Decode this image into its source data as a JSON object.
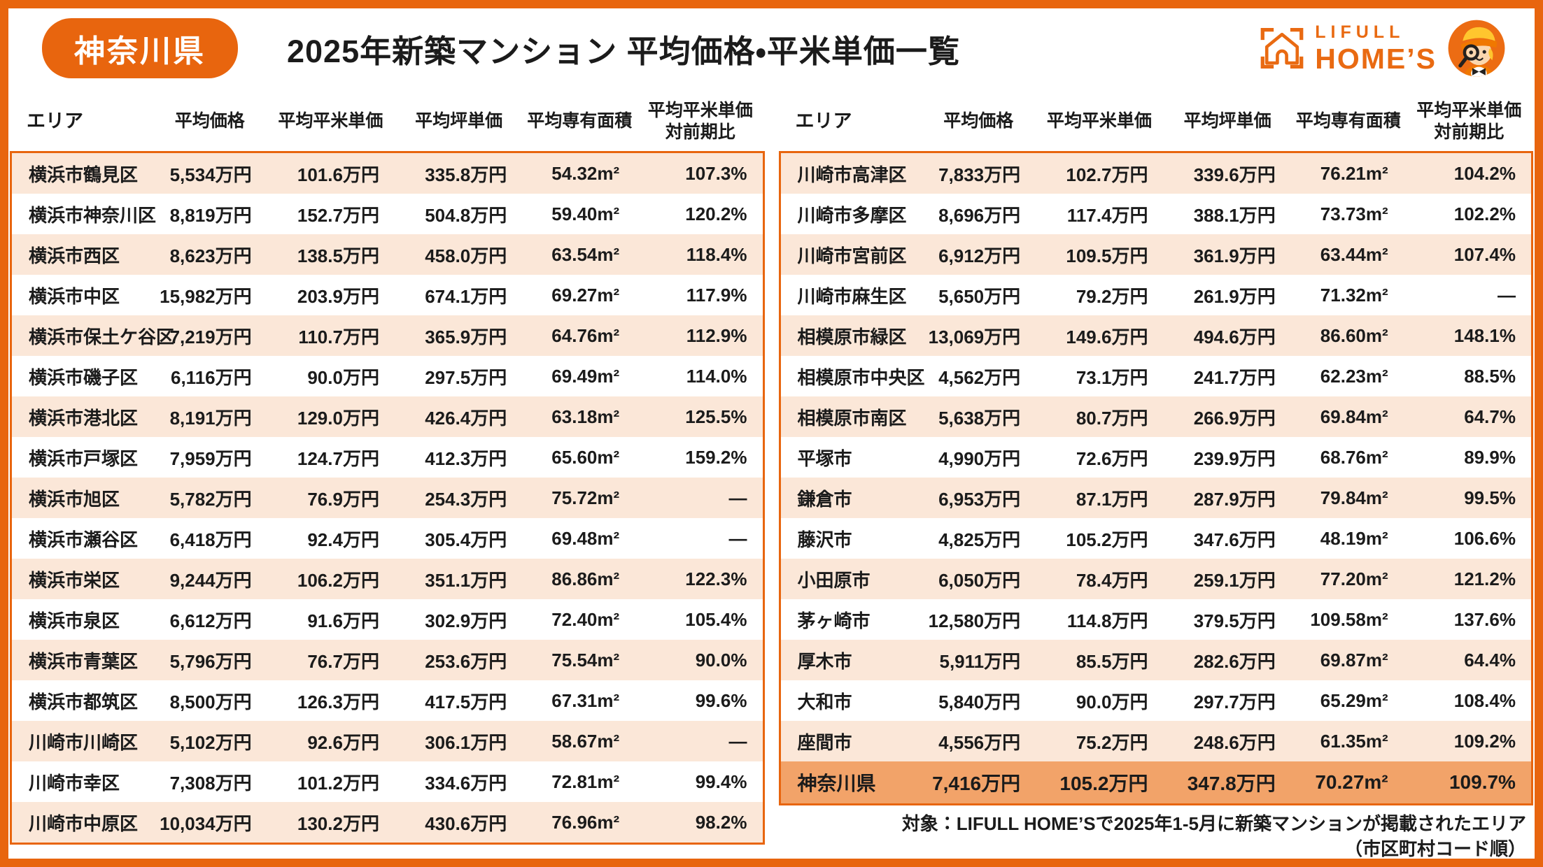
{
  "header": {
    "badge": "神奈川県",
    "title": "2025年新築マンション 平均価格・平米単価一覧"
  },
  "logo": {
    "brand_top": "LIFULL",
    "brand_bottom": "HOME’S"
  },
  "colors": {
    "accent": "#E8650E",
    "row_alternate": "#FBE7D8",
    "summary_row": "#F2A369"
  },
  "chart_data": {
    "type": "table",
    "title": "2025年新築マンション 平均価格・平米単価一覧",
    "region": "神奈川県",
    "columns": [
      "エリア",
      "平均価格",
      "平均平米単価",
      "平均坪単価",
      "平均専有面積",
      "平均平米単価\n対前期比"
    ],
    "tables": [
      {
        "rows": [
          [
            "横浜市鶴見区",
            "5,534万円",
            "101.6万円",
            "335.8万円",
            "54.32m²",
            "107.3%"
          ],
          [
            "横浜市神奈川区",
            "8,819万円",
            "152.7万円",
            "504.8万円",
            "59.40m²",
            "120.2%"
          ],
          [
            "横浜市西区",
            "8,623万円",
            "138.5万円",
            "458.0万円",
            "63.54m²",
            "118.4%"
          ],
          [
            "横浜市中区",
            "15,982万円",
            "203.9万円",
            "674.1万円",
            "69.27m²",
            "117.9%"
          ],
          [
            "横浜市保土ケ谷区",
            "7,219万円",
            "110.7万円",
            "365.9万円",
            "64.76m²",
            "112.9%"
          ],
          [
            "横浜市磯子区",
            "6,116万円",
            "90.0万円",
            "297.5万円",
            "69.49m²",
            "114.0%"
          ],
          [
            "横浜市港北区",
            "8,191万円",
            "129.0万円",
            "426.4万円",
            "63.18m²",
            "125.5%"
          ],
          [
            "横浜市戸塚区",
            "7,959万円",
            "124.7万円",
            "412.3万円",
            "65.60m²",
            "159.2%"
          ],
          [
            "横浜市旭区",
            "5,782万円",
            "76.9万円",
            "254.3万円",
            "75.72m²",
            "—"
          ],
          [
            "横浜市瀬谷区",
            "6,418万円",
            "92.4万円",
            "305.4万円",
            "69.48m²",
            "—"
          ],
          [
            "横浜市栄区",
            "9,244万円",
            "106.2万円",
            "351.1万円",
            "86.86m²",
            "122.3%"
          ],
          [
            "横浜市泉区",
            "6,612万円",
            "91.6万円",
            "302.9万円",
            "72.40m²",
            "105.4%"
          ],
          [
            "横浜市青葉区",
            "5,796万円",
            "76.7万円",
            "253.6万円",
            "75.54m²",
            "90.0%"
          ],
          [
            "横浜市都筑区",
            "8,500万円",
            "126.3万円",
            "417.5万円",
            "67.31m²",
            "99.6%"
          ],
          [
            "川崎市川崎区",
            "5,102万円",
            "92.6万円",
            "306.1万円",
            "58.67m²",
            "—"
          ],
          [
            "川崎市幸区",
            "7,308万円",
            "101.2万円",
            "334.6万円",
            "72.81m²",
            "99.4%"
          ],
          [
            "川崎市中原区",
            "10,034万円",
            "130.2万円",
            "430.6万円",
            "76.96m²",
            "98.2%"
          ]
        ]
      },
      {
        "rows": [
          [
            "川崎市高津区",
            "7,833万円",
            "102.7万円",
            "339.6万円",
            "76.21m²",
            "104.2%"
          ],
          [
            "川崎市多摩区",
            "8,696万円",
            "117.4万円",
            "388.1万円",
            "73.73m²",
            "102.2%"
          ],
          [
            "川崎市宮前区",
            "6,912万円",
            "109.5万円",
            "361.9万円",
            "63.44m²",
            "107.4%"
          ],
          [
            "川崎市麻生区",
            "5,650万円",
            "79.2万円",
            "261.9万円",
            "71.32m²",
            "—"
          ],
          [
            "相模原市緑区",
            "13,069万円",
            "149.6万円",
            "494.6万円",
            "86.60m²",
            "148.1%"
          ],
          [
            "相模原市中央区",
            "4,562万円",
            "73.1万円",
            "241.7万円",
            "62.23m²",
            "88.5%"
          ],
          [
            "相模原市南区",
            "5,638万円",
            "80.7万円",
            "266.9万円",
            "69.84m²",
            "64.7%"
          ],
          [
            "平塚市",
            "4,990万円",
            "72.6万円",
            "239.9万円",
            "68.76m²",
            "89.9%"
          ],
          [
            "鎌倉市",
            "6,953万円",
            "87.1万円",
            "287.9万円",
            "79.84m²",
            "99.5%"
          ],
          [
            "藤沢市",
            "4,825万円",
            "105.2万円",
            "347.6万円",
            "48.19m²",
            "106.6%"
          ],
          [
            "小田原市",
            "6,050万円",
            "78.4万円",
            "259.1万円",
            "77.20m²",
            "121.2%"
          ],
          [
            "茅ヶ崎市",
            "12,580万円",
            "114.8万円",
            "379.5万円",
            "109.58m²",
            "137.6%"
          ],
          [
            "厚木市",
            "5,911万円",
            "85.5万円",
            "282.6万円",
            "69.87m²",
            "64.4%"
          ],
          [
            "大和市",
            "5,840万円",
            "90.0万円",
            "297.7万円",
            "65.29m²",
            "108.4%"
          ],
          [
            "座間市",
            "4,556万円",
            "75.2万円",
            "248.6万円",
            "61.35m²",
            "109.2%"
          ]
        ],
        "summary_row": [
          "神奈川県",
          "7,416万円",
          "105.2万円",
          "347.8万円",
          "70.27m²",
          "109.7%"
        ]
      }
    ]
  },
  "footer": {
    "line1": "対象：LIFULL HOME’Sで2025年1-5月に新築マンションが掲載されたエリア",
    "line2": "（市区町村コード順）"
  }
}
